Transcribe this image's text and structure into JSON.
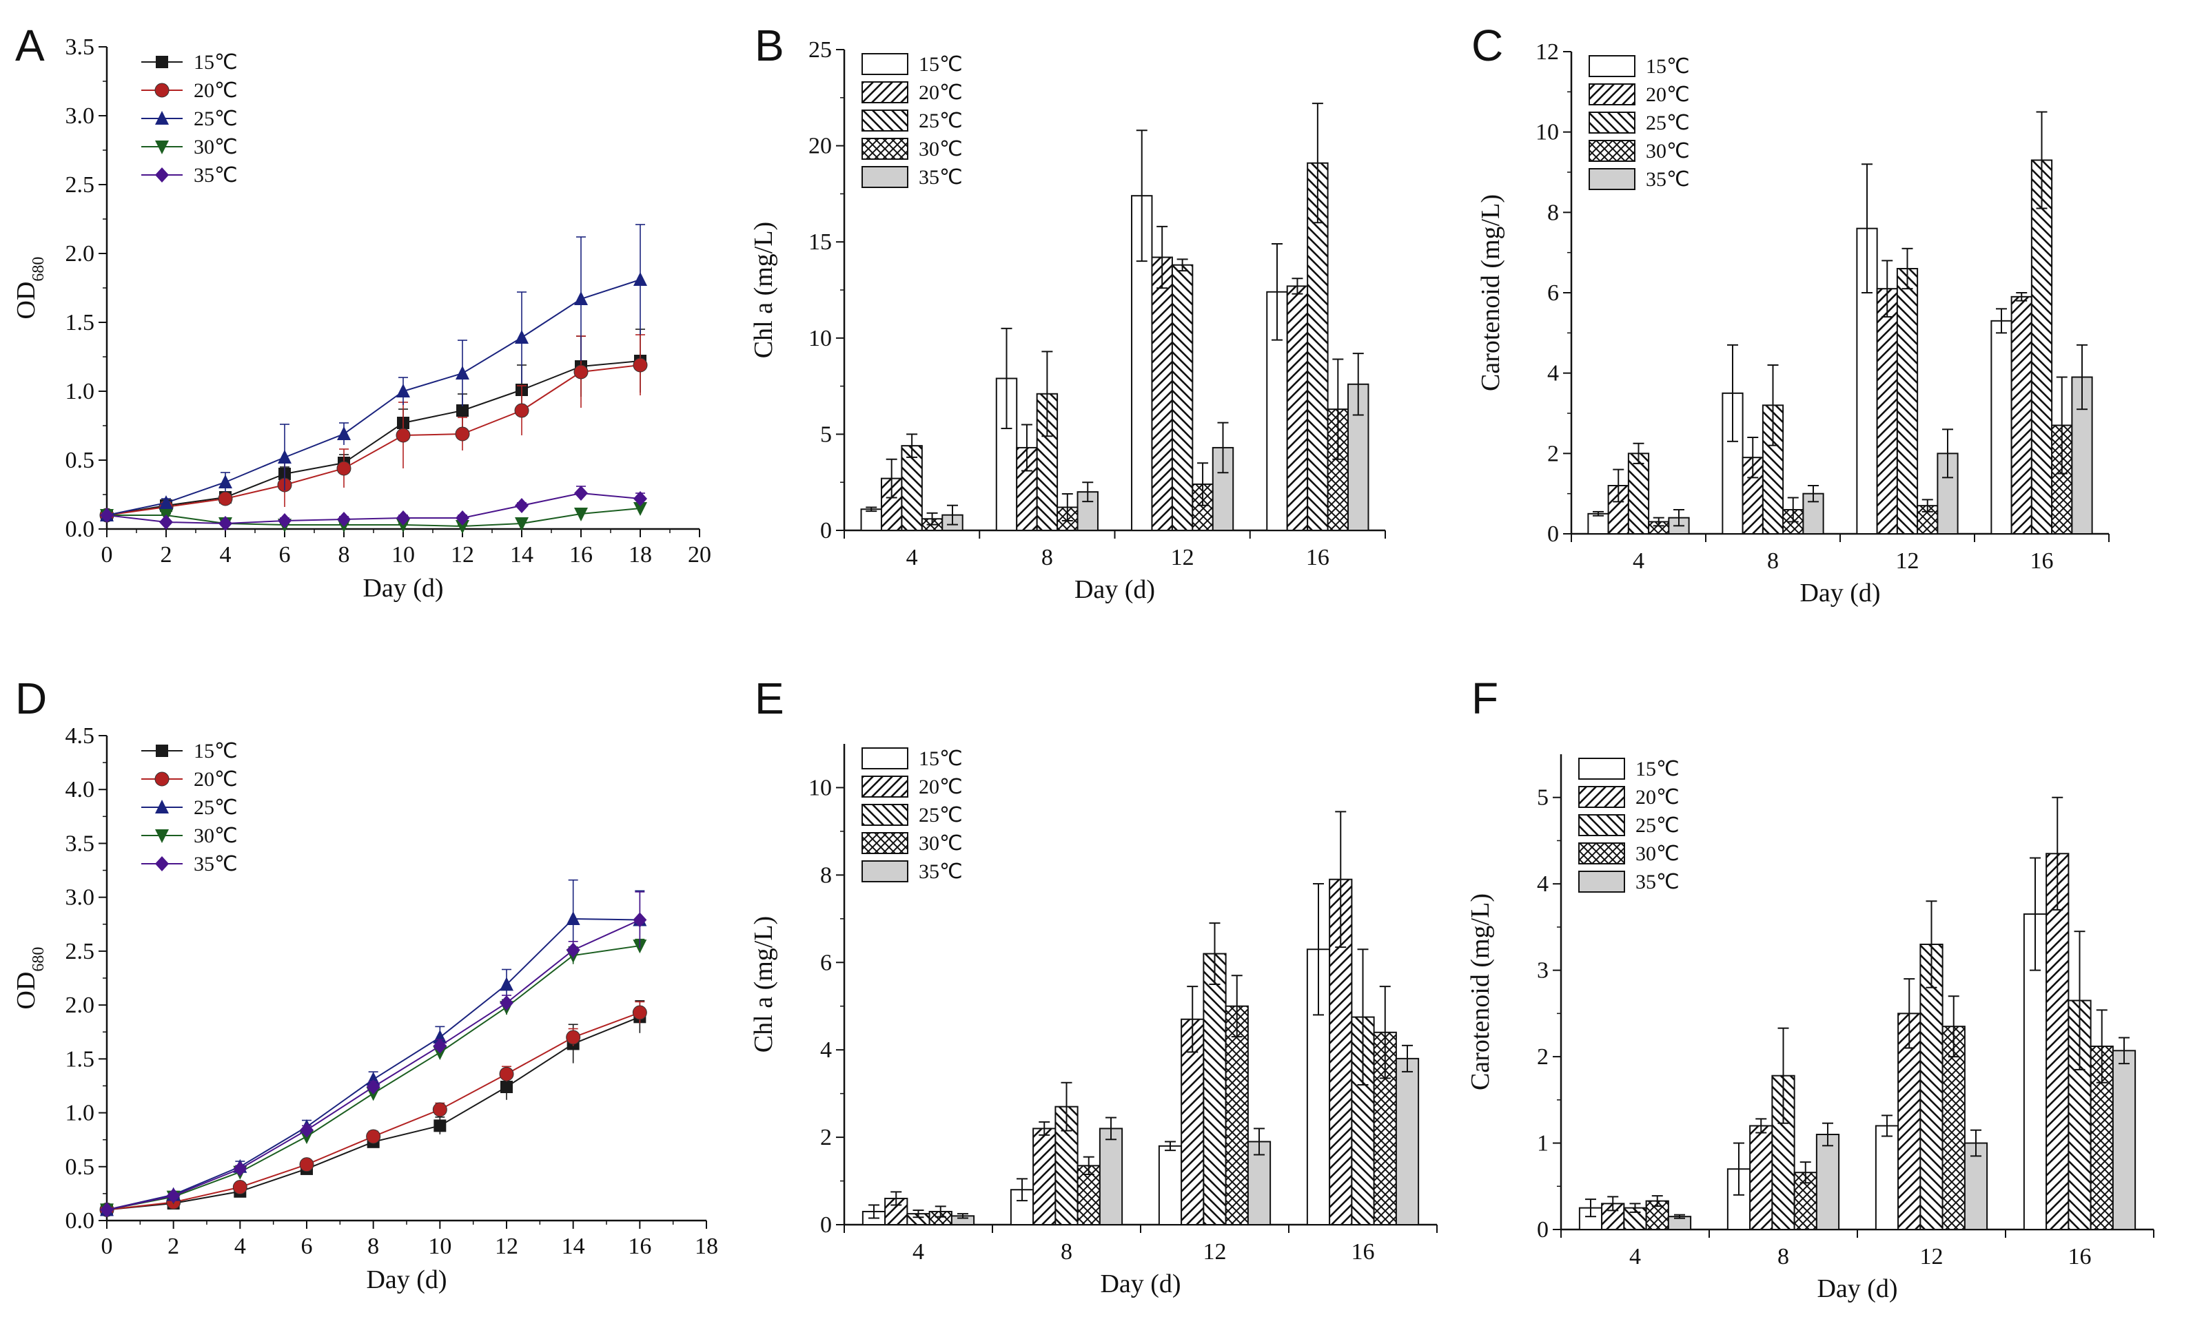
{
  "legend_labels": [
    "15℃",
    "20℃",
    "25℃",
    "30℃",
    "35℃"
  ],
  "colors": {
    "s15": "#1a1a1a",
    "s20": "#b22222",
    "s25": "#1a237e",
    "s30": "#1b5e20",
    "s35": "#4a148c",
    "bar_fill": "#ffffff",
    "bar35": "#cfcfcf",
    "stroke": "#111111"
  },
  "chart_data": [
    {
      "panel": "A",
      "type": "line",
      "xlabel": "Day (d)",
      "ylabel": "OD680",
      "xlim": [
        0,
        20
      ],
      "xticks": [
        0,
        2,
        4,
        6,
        8,
        10,
        12,
        14,
        16,
        18,
        20
      ],
      "ylim": [
        0,
        3.5
      ],
      "yticks": [
        0.0,
        0.5,
        1.0,
        1.5,
        2.0,
        2.5,
        3.0,
        3.5
      ],
      "ytick_labels": [
        "0.0",
        "0.5",
        "1.0",
        "1.5",
        "2.0",
        "2.5",
        "3.0",
        "3.5"
      ],
      "legend": "top-left",
      "series": [
        {
          "name": "15℃",
          "x": [
            0,
            2,
            4,
            6,
            8,
            10,
            12,
            14,
            16,
            18
          ],
          "values": [
            0.1,
            0.17,
            0.23,
            0.4,
            0.48,
            0.77,
            0.86,
            1.01,
            1.18,
            1.22
          ],
          "errors": [
            0.01,
            0.02,
            0.03,
            0.05,
            0.06,
            0.1,
            0.12,
            0.18,
            0.22,
            0.23
          ]
        },
        {
          "name": "20℃",
          "x": [
            0,
            2,
            4,
            6,
            8,
            10,
            12,
            14,
            16,
            18
          ],
          "values": [
            0.1,
            0.16,
            0.22,
            0.32,
            0.44,
            0.68,
            0.69,
            0.86,
            1.14,
            1.19
          ],
          "errors": [
            0.01,
            0.02,
            0.03,
            0.16,
            0.14,
            0.24,
            0.12,
            0.18,
            0.26,
            0.22
          ]
        },
        {
          "name": "25℃",
          "x": [
            0,
            2,
            4,
            6,
            8,
            10,
            12,
            14,
            16,
            18
          ],
          "values": [
            0.1,
            0.19,
            0.34,
            0.52,
            0.69,
            1.0,
            1.13,
            1.39,
            1.67,
            1.81
          ],
          "errors": [
            0.01,
            0.03,
            0.07,
            0.24,
            0.08,
            0.1,
            0.24,
            0.33,
            0.45,
            0.4
          ]
        },
        {
          "name": "30℃",
          "x": [
            0,
            2,
            4,
            6,
            8,
            10,
            12,
            14,
            16,
            18
          ],
          "values": [
            0.1,
            0.1,
            0.04,
            0.03,
            0.03,
            0.03,
            0.02,
            0.04,
            0.11,
            0.15
          ],
          "errors": [
            0.01,
            0.01,
            0.01,
            0.01,
            0.01,
            0.01,
            0.01,
            0.02,
            0.03,
            0.04
          ]
        },
        {
          "name": "35℃",
          "x": [
            0,
            2,
            4,
            6,
            8,
            10,
            12,
            14,
            16,
            18
          ],
          "values": [
            0.1,
            0.05,
            0.04,
            0.06,
            0.07,
            0.08,
            0.08,
            0.17,
            0.26,
            0.22
          ],
          "errors": [
            0.01,
            0.01,
            0.01,
            0.02,
            0.02,
            0.02,
            0.02,
            0.02,
            0.05,
            0.04
          ]
        }
      ]
    },
    {
      "panel": "B",
      "type": "bar",
      "xlabel": "Day (d)",
      "ylabel": "Chl a (mg/L)",
      "categories": [
        "4",
        "8",
        "12",
        "16"
      ],
      "ylim": [
        0,
        25
      ],
      "yticks": [
        0,
        5,
        10,
        15,
        20,
        25
      ],
      "legend": "top-left",
      "series": [
        {
          "name": "15℃",
          "values": [
            1.1,
            7.9,
            17.4,
            12.4
          ],
          "errors": [
            0.1,
            2.6,
            3.4,
            2.5
          ]
        },
        {
          "name": "20℃",
          "values": [
            2.7,
            4.3,
            14.2,
            12.7
          ],
          "errors": [
            1.0,
            1.2,
            1.6,
            0.4
          ]
        },
        {
          "name": "25℃",
          "values": [
            4.4,
            7.1,
            13.8,
            19.1
          ],
          "errors": [
            0.6,
            2.2,
            0.3,
            3.1
          ]
        },
        {
          "name": "30℃",
          "values": [
            0.6,
            1.2,
            2.4,
            6.3
          ],
          "errors": [
            0.3,
            0.7,
            1.1,
            2.6
          ]
        },
        {
          "name": "35℃",
          "values": [
            0.8,
            2.0,
            4.3,
            7.6
          ],
          "errors": [
            0.5,
            0.5,
            1.3,
            1.6
          ]
        }
      ]
    },
    {
      "panel": "C",
      "type": "bar",
      "xlabel": "Day (d)",
      "ylabel": "Carotenoid  (mg/L)",
      "categories": [
        "4",
        "8",
        "12",
        "16"
      ],
      "ylim": [
        0,
        12
      ],
      "yticks": [
        0,
        2,
        4,
        6,
        8,
        10,
        12
      ],
      "legend": "top-left",
      "series": [
        {
          "name": "15℃",
          "values": [
            0.5,
            3.5,
            7.6,
            5.3
          ],
          "errors": [
            0.05,
            1.2,
            1.6,
            0.3
          ]
        },
        {
          "name": "20℃",
          "values": [
            1.2,
            1.9,
            6.1,
            5.9
          ],
          "errors": [
            0.4,
            0.5,
            0.7,
            0.1
          ]
        },
        {
          "name": "25℃",
          "values": [
            2.0,
            3.2,
            6.6,
            9.3
          ],
          "errors": [
            0.25,
            1.0,
            0.5,
            1.2
          ]
        },
        {
          "name": "30℃",
          "values": [
            0.3,
            0.6,
            0.7,
            2.7
          ],
          "errors": [
            0.1,
            0.3,
            0.15,
            1.2
          ]
        },
        {
          "name": "35℃",
          "values": [
            0.4,
            1.0,
            2.0,
            3.9
          ],
          "errors": [
            0.2,
            0.2,
            0.6,
            0.8
          ]
        }
      ]
    },
    {
      "panel": "D",
      "type": "line",
      "xlabel": "Day (d)",
      "ylabel": "OD680",
      "xlim": [
        0,
        18
      ],
      "xticks": [
        0,
        2,
        4,
        6,
        8,
        10,
        12,
        14,
        16,
        18
      ],
      "ylim": [
        0,
        4.5
      ],
      "yticks": [
        0.0,
        0.5,
        1.0,
        1.5,
        2.0,
        2.5,
        3.0,
        3.5,
        4.0,
        4.5
      ],
      "ytick_labels": [
        "0.0",
        "0.5",
        "1.0",
        "1.5",
        "2.0",
        "2.5",
        "3.0",
        "3.5",
        "4.0",
        "4.5"
      ],
      "legend": "top-left",
      "series": [
        {
          "name": "15℃",
          "x": [
            0,
            2,
            4,
            6,
            8,
            10,
            12,
            14,
            16
          ],
          "values": [
            0.1,
            0.16,
            0.27,
            0.48,
            0.73,
            0.88,
            1.24,
            1.64,
            1.89
          ],
          "errors": [
            0.01,
            0.02,
            0.03,
            0.04,
            0.05,
            0.08,
            0.12,
            0.18,
            0.15
          ]
        },
        {
          "name": "20℃",
          "x": [
            0,
            2,
            4,
            6,
            8,
            10,
            12,
            14,
            16
          ],
          "values": [
            0.1,
            0.17,
            0.31,
            0.52,
            0.78,
            1.03,
            1.36,
            1.7,
            1.93
          ],
          "errors": [
            0.01,
            0.02,
            0.03,
            0.04,
            0.05,
            0.06,
            0.07,
            0.08,
            0.1
          ]
        },
        {
          "name": "25℃",
          "x": [
            0,
            2,
            4,
            6,
            8,
            10,
            12,
            14,
            16
          ],
          "values": [
            0.1,
            0.24,
            0.5,
            0.87,
            1.31,
            1.7,
            2.19,
            2.8,
            2.79
          ],
          "errors": [
            0.01,
            0.03,
            0.05,
            0.06,
            0.07,
            0.1,
            0.14,
            0.36,
            0.27
          ]
        },
        {
          "name": "30℃",
          "x": [
            0,
            2,
            4,
            6,
            8,
            10,
            12,
            14,
            16
          ],
          "values": [
            0.1,
            0.22,
            0.45,
            0.78,
            1.18,
            1.56,
            1.98,
            2.46,
            2.55
          ],
          "errors": [
            0.01,
            0.02,
            0.03,
            0.04,
            0.05,
            0.06,
            0.07,
            0.08,
            0.06
          ]
        },
        {
          "name": "35℃",
          "x": [
            0,
            2,
            4,
            6,
            8,
            10,
            12,
            14,
            16
          ],
          "values": [
            0.1,
            0.23,
            0.48,
            0.84,
            1.24,
            1.62,
            2.02,
            2.51,
            2.79
          ],
          "errors": [
            0.01,
            0.02,
            0.03,
            0.04,
            0.05,
            0.06,
            0.07,
            0.08,
            0.26
          ]
        }
      ]
    },
    {
      "panel": "E",
      "type": "bar",
      "xlabel": "Day (d)",
      "ylabel": "Chl a (mg/L)",
      "categories": [
        "4",
        "8",
        "12",
        "16"
      ],
      "ylim": [
        0,
        11
      ],
      "yticks": [
        0,
        2,
        4,
        6,
        8,
        10
      ],
      "legend": "top-left",
      "series": [
        {
          "name": "15℃",
          "values": [
            0.3,
            0.8,
            1.8,
            6.3
          ],
          "errors": [
            0.15,
            0.25,
            0.1,
            1.5
          ]
        },
        {
          "name": "20℃",
          "values": [
            0.6,
            2.2,
            4.7,
            7.9
          ],
          "errors": [
            0.15,
            0.15,
            0.75,
            1.55
          ]
        },
        {
          "name": "25℃",
          "values": [
            0.25,
            2.7,
            6.2,
            4.75
          ],
          "errors": [
            0.08,
            0.55,
            0.7,
            1.55
          ]
        },
        {
          "name": "30℃",
          "values": [
            0.3,
            1.35,
            5.0,
            4.4
          ],
          "errors": [
            0.12,
            0.2,
            0.7,
            1.05
          ]
        },
        {
          "name": "35℃",
          "values": [
            0.2,
            2.2,
            1.9,
            3.8
          ],
          "errors": [
            0.05,
            0.25,
            0.3,
            0.3
          ]
        }
      ]
    },
    {
      "panel": "F",
      "type": "bar",
      "xlabel": "Day (d)",
      "ylabel": "Carotenoid  (mg/L)",
      "categories": [
        "4",
        "8",
        "12",
        "16"
      ],
      "ylim": [
        0,
        5.5
      ],
      "yticks": [
        0,
        1,
        2,
        3,
        4,
        5
      ],
      "legend": "top-left",
      "series": [
        {
          "name": "15℃",
          "values": [
            0.25,
            0.7,
            1.2,
            3.65
          ],
          "errors": [
            0.1,
            0.3,
            0.12,
            0.65
          ]
        },
        {
          "name": "20℃",
          "values": [
            0.3,
            1.2,
            2.5,
            4.35
          ],
          "errors": [
            0.08,
            0.08,
            0.4,
            0.65
          ]
        },
        {
          "name": "25℃",
          "values": [
            0.25,
            1.78,
            3.3,
            2.65
          ],
          "errors": [
            0.05,
            0.55,
            0.5,
            0.8
          ]
        },
        {
          "name": "30℃",
          "values": [
            0.33,
            0.66,
            2.35,
            2.12
          ],
          "errors": [
            0.06,
            0.12,
            0.35,
            0.42
          ]
        },
        {
          "name": "35℃",
          "values": [
            0.15,
            1.1,
            1.0,
            2.07
          ],
          "errors": [
            0.02,
            0.13,
            0.15,
            0.15
          ]
        }
      ]
    }
  ]
}
